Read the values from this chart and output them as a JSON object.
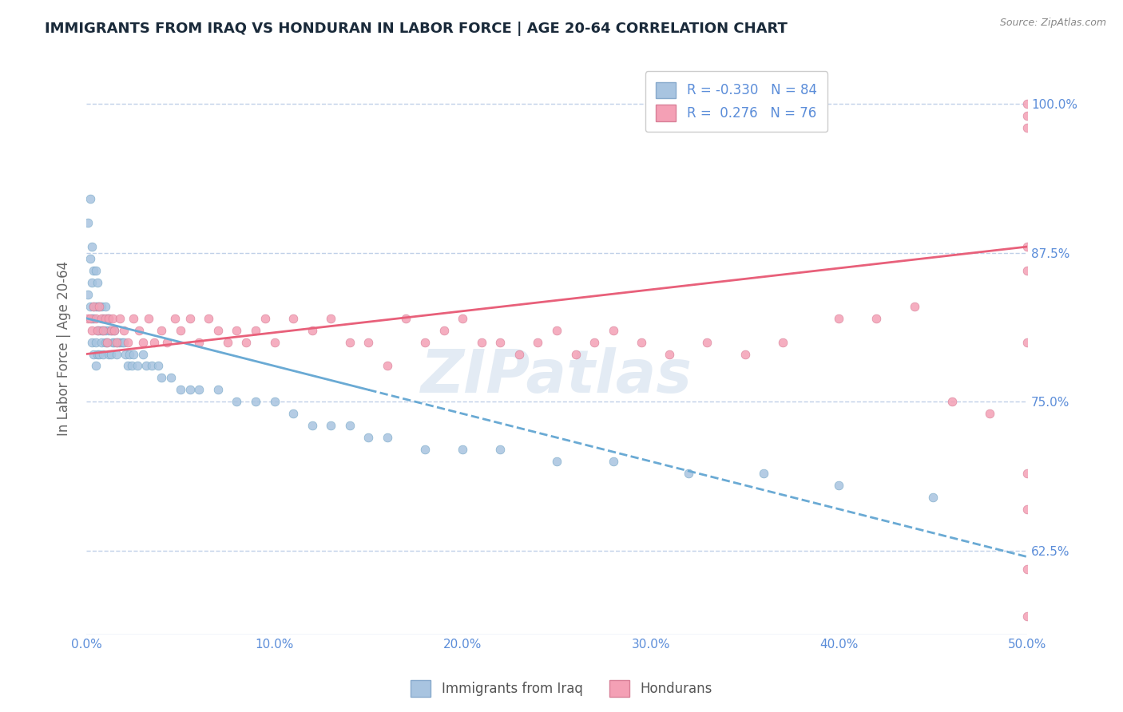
{
  "title": "IMMIGRANTS FROM IRAQ VS HONDURAN IN LABOR FORCE | AGE 20-64 CORRELATION CHART",
  "source": "Source: ZipAtlas.com",
  "ylabel": "In Labor Force | Age 20-64",
  "xlim": [
    0.0,
    0.5
  ],
  "ylim": [
    0.555,
    1.035
  ],
  "xticks": [
    0.0,
    0.1,
    0.2,
    0.3,
    0.4,
    0.5
  ],
  "xticklabels": [
    "0.0%",
    "10.0%",
    "20.0%",
    "30.0%",
    "40.0%",
    "50.0%"
  ],
  "yticks": [
    0.625,
    0.75,
    0.875,
    1.0
  ],
  "yticklabels": [
    "62.5%",
    "75.0%",
    "87.5%",
    "100.0%"
  ],
  "iraq_color": "#a8c4e0",
  "honduran_color": "#f4a0b5",
  "iraq_R": -0.33,
  "iraq_N": 84,
  "honduran_R": 0.276,
  "honduran_N": 76,
  "iraq_label": "Immigrants from Iraq",
  "honduran_label": "Hondurans",
  "watermark": "ZIPatlas",
  "title_color": "#1a2a3a",
  "axis_color": "#5b8dd9",
  "trend_iraq_color": "#6aaad4",
  "trend_honduran_color": "#e8607a",
  "background_color": "#ffffff",
  "grid_color": "#c0d0e8",
  "iraq_scatter_x": [
    0.001,
    0.001,
    0.002,
    0.002,
    0.002,
    0.003,
    0.003,
    0.003,
    0.003,
    0.004,
    0.004,
    0.004,
    0.004,
    0.005,
    0.005,
    0.005,
    0.005,
    0.006,
    0.006,
    0.006,
    0.006,
    0.007,
    0.007,
    0.007,
    0.008,
    0.008,
    0.008,
    0.009,
    0.009,
    0.009,
    0.01,
    0.01,
    0.01,
    0.011,
    0.011,
    0.012,
    0.012,
    0.012,
    0.013,
    0.013,
    0.014,
    0.014,
    0.015,
    0.015,
    0.016,
    0.016,
    0.017,
    0.018,
    0.019,
    0.02,
    0.021,
    0.022,
    0.023,
    0.024,
    0.025,
    0.027,
    0.03,
    0.032,
    0.035,
    0.038,
    0.04,
    0.045,
    0.05,
    0.055,
    0.06,
    0.07,
    0.08,
    0.09,
    0.1,
    0.11,
    0.12,
    0.13,
    0.14,
    0.15,
    0.16,
    0.18,
    0.2,
    0.22,
    0.25,
    0.28,
    0.32,
    0.36,
    0.4,
    0.45
  ],
  "iraq_scatter_y": [
    0.84,
    0.9,
    0.83,
    0.87,
    0.92,
    0.82,
    0.85,
    0.88,
    0.8,
    0.83,
    0.86,
    0.82,
    0.79,
    0.83,
    0.86,
    0.8,
    0.78,
    0.83,
    0.85,
    0.81,
    0.79,
    0.83,
    0.81,
    0.79,
    0.83,
    0.81,
    0.8,
    0.82,
    0.81,
    0.79,
    0.83,
    0.81,
    0.8,
    0.82,
    0.8,
    0.82,
    0.81,
    0.79,
    0.81,
    0.79,
    0.81,
    0.8,
    0.81,
    0.8,
    0.8,
    0.79,
    0.8,
    0.8,
    0.8,
    0.8,
    0.79,
    0.78,
    0.79,
    0.78,
    0.79,
    0.78,
    0.79,
    0.78,
    0.78,
    0.78,
    0.77,
    0.77,
    0.76,
    0.76,
    0.76,
    0.76,
    0.75,
    0.75,
    0.75,
    0.74,
    0.73,
    0.73,
    0.73,
    0.72,
    0.72,
    0.71,
    0.71,
    0.71,
    0.7,
    0.7,
    0.69,
    0.69,
    0.68,
    0.67
  ],
  "honduran_scatter_x": [
    0.001,
    0.002,
    0.003,
    0.004,
    0.005,
    0.006,
    0.007,
    0.008,
    0.009,
    0.01,
    0.011,
    0.012,
    0.013,
    0.014,
    0.015,
    0.016,
    0.018,
    0.02,
    0.022,
    0.025,
    0.028,
    0.03,
    0.033,
    0.036,
    0.04,
    0.043,
    0.047,
    0.05,
    0.055,
    0.06,
    0.065,
    0.07,
    0.075,
    0.08,
    0.085,
    0.09,
    0.095,
    0.1,
    0.11,
    0.12,
    0.13,
    0.14,
    0.15,
    0.16,
    0.17,
    0.18,
    0.19,
    0.2,
    0.21,
    0.22,
    0.23,
    0.24,
    0.25,
    0.26,
    0.27,
    0.28,
    0.295,
    0.31,
    0.33,
    0.35,
    0.37,
    0.4,
    0.42,
    0.44,
    0.46,
    0.48,
    0.5,
    0.5,
    0.5,
    0.5,
    0.5,
    0.5,
    0.5,
    0.5,
    0.5,
    0.5
  ],
  "honduran_scatter_y": [
    0.82,
    0.82,
    0.81,
    0.83,
    0.82,
    0.81,
    0.83,
    0.82,
    0.81,
    0.82,
    0.8,
    0.82,
    0.81,
    0.82,
    0.81,
    0.8,
    0.82,
    0.81,
    0.8,
    0.82,
    0.81,
    0.8,
    0.82,
    0.8,
    0.81,
    0.8,
    0.82,
    0.81,
    0.82,
    0.8,
    0.82,
    0.81,
    0.8,
    0.81,
    0.8,
    0.81,
    0.82,
    0.8,
    0.82,
    0.81,
    0.82,
    0.8,
    0.8,
    0.78,
    0.82,
    0.8,
    0.81,
    0.82,
    0.8,
    0.8,
    0.79,
    0.8,
    0.81,
    0.79,
    0.8,
    0.81,
    0.8,
    0.79,
    0.8,
    0.79,
    0.8,
    0.82,
    0.82,
    0.83,
    0.75,
    0.74,
    0.98,
    1.0,
    0.99,
    0.88,
    0.86,
    0.8,
    0.69,
    0.66,
    0.61,
    0.57
  ],
  "trend_iraq_x0": 0.0,
  "trend_iraq_x1": 0.5,
  "trend_iraq_y0": 0.82,
  "trend_iraq_y1": 0.62,
  "trend_honduran_x0": 0.0,
  "trend_honduran_x1": 0.5,
  "trend_honduran_y0": 0.79,
  "trend_honduran_y1": 0.88
}
